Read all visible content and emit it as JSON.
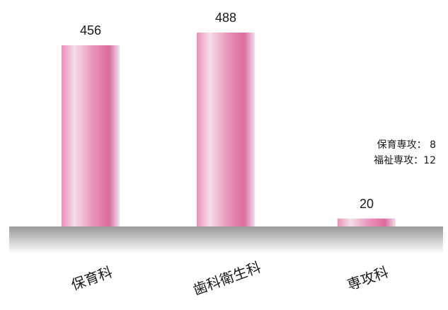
{
  "chart_data": {
    "type": "bar",
    "categories": [
      "保育科",
      "歯科衛生科",
      "専攻科"
    ],
    "values": [
      456,
      488,
      20
    ],
    "ylim": [
      0,
      560
    ],
    "grid": false,
    "legend": "none",
    "annotations": [
      "保育専攻：  8",
      "福祉専攻：12"
    ]
  },
  "colors": {
    "bar_edge": "#f5dde8",
    "bar_mid": "#e991b8",
    "bar_center": "#dd6a9e",
    "floor_top": "#9a9a9a",
    "floor_bottom": "#ffffff",
    "text": "#1a1a1a"
  }
}
